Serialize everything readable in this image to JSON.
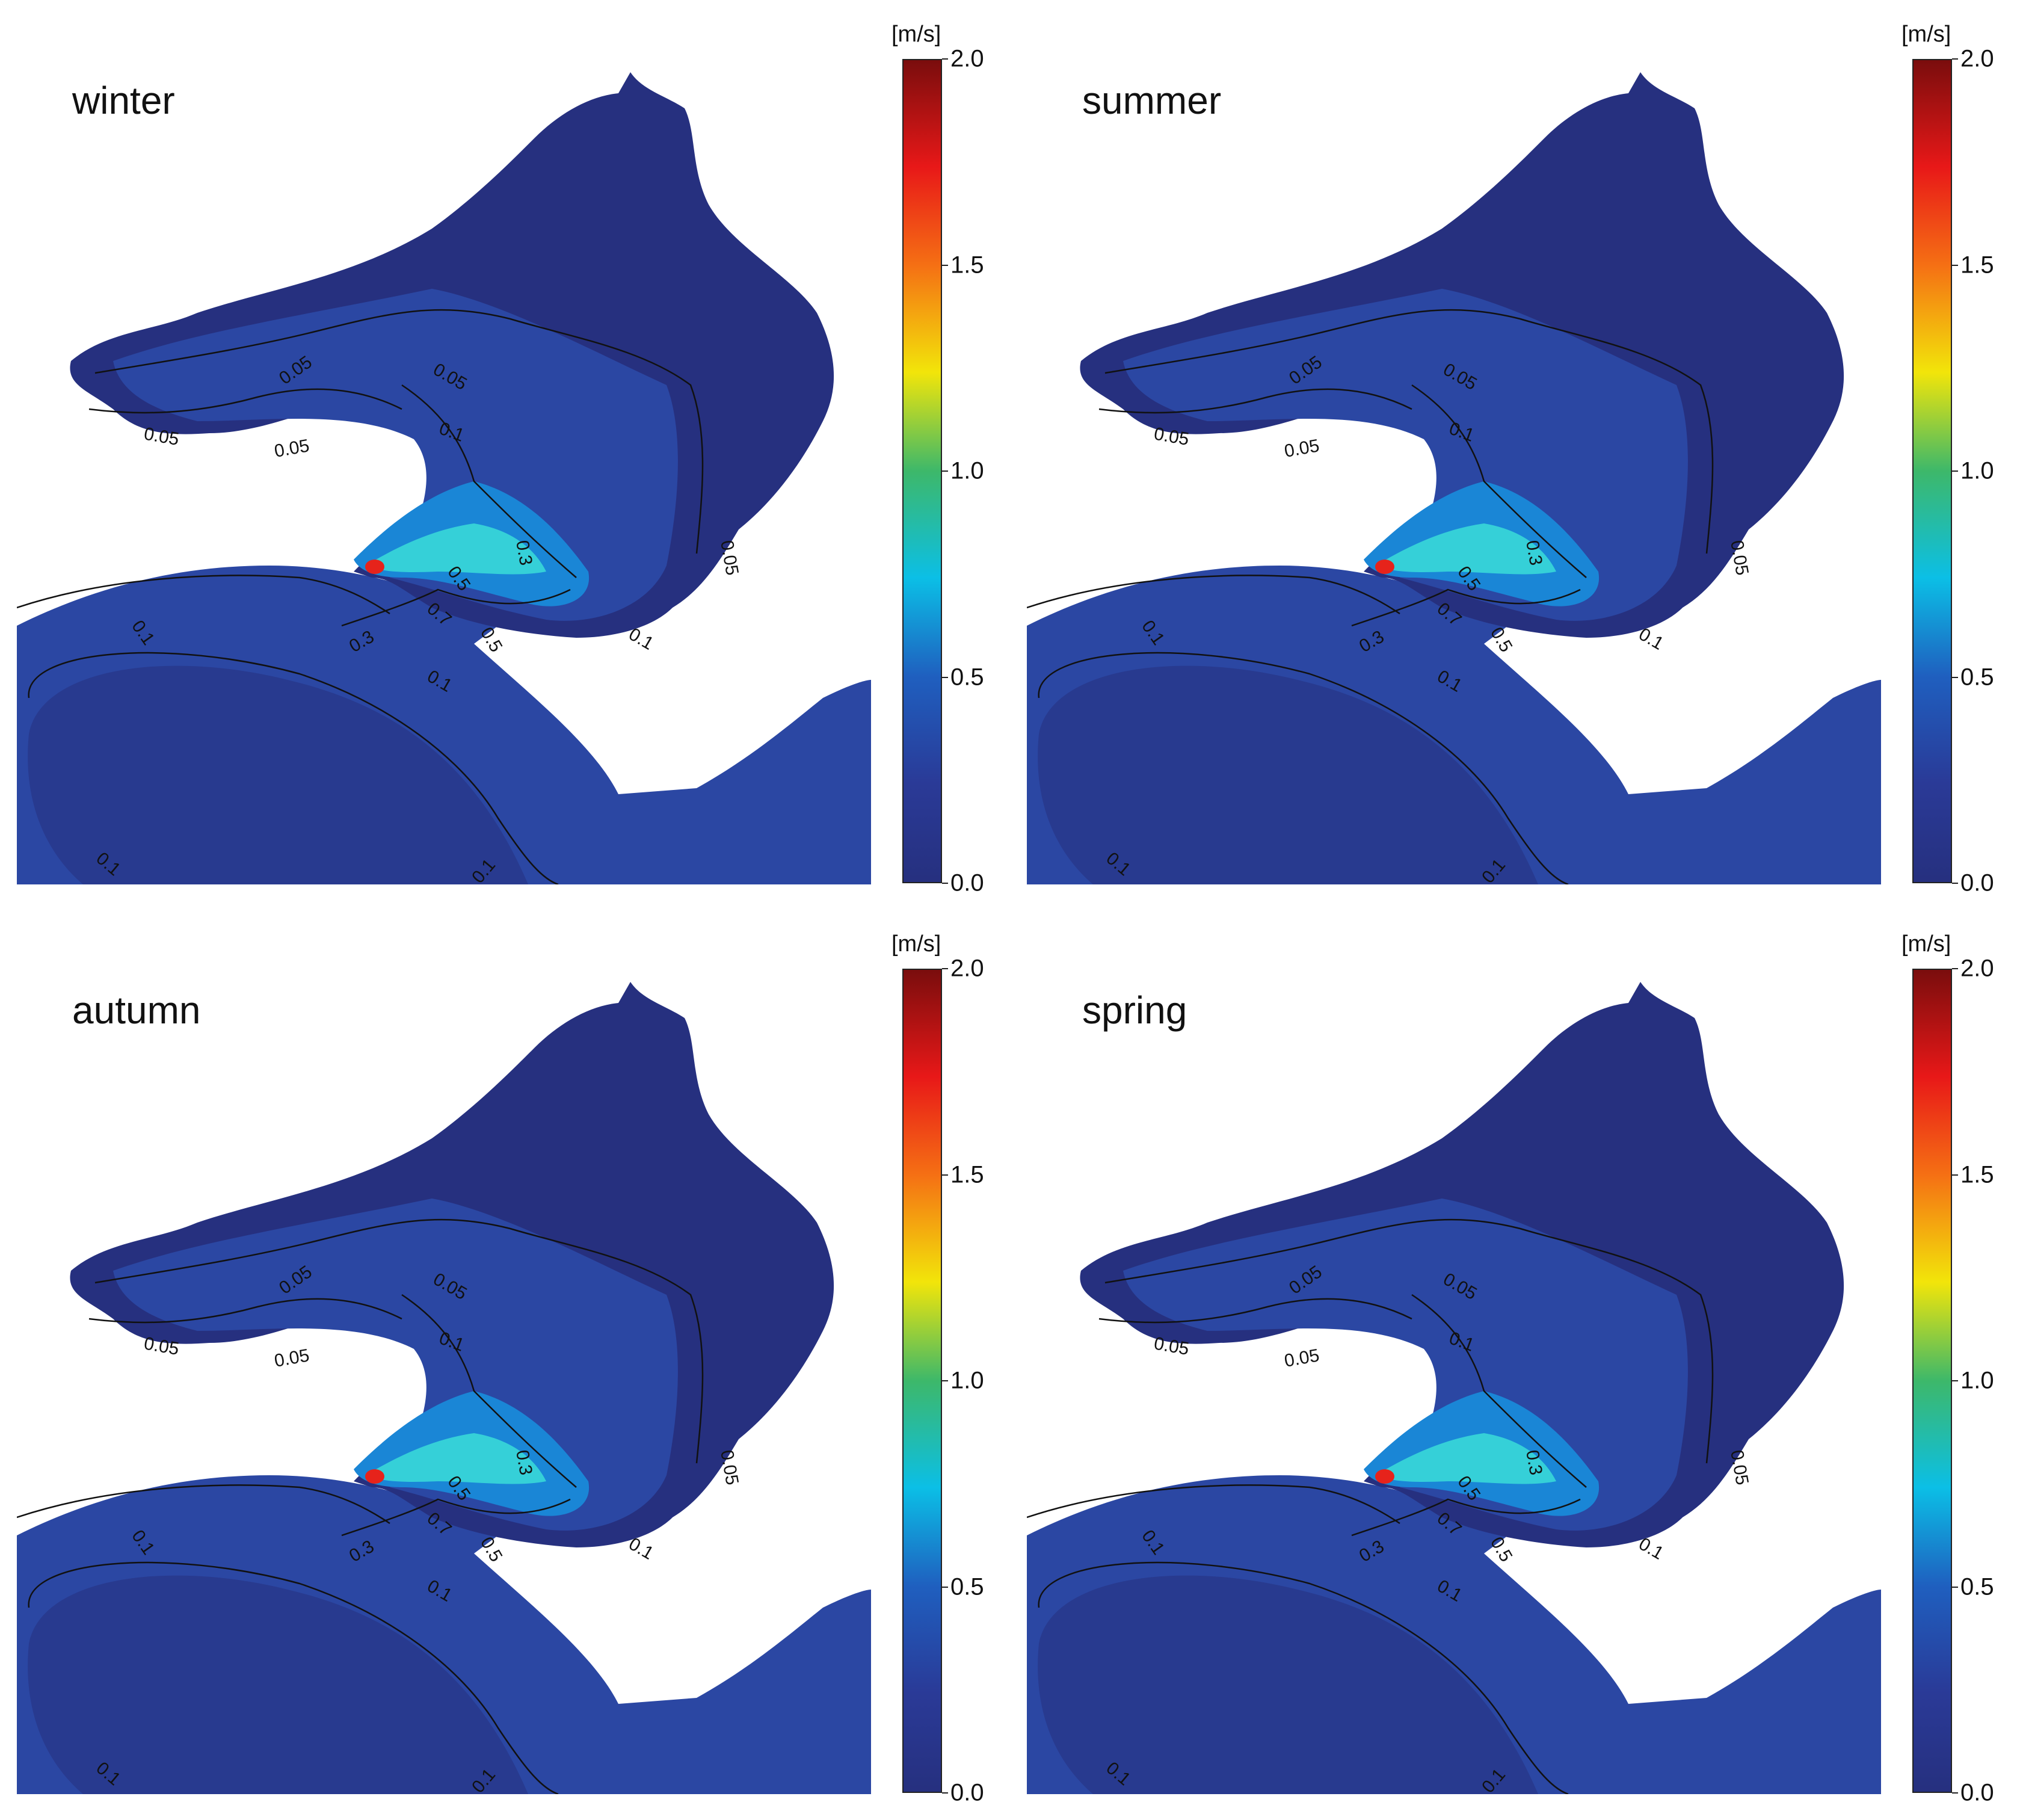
{
  "colorbar": {
    "unit": "[m/s]",
    "ticks": [
      "2.0",
      "1.5",
      "1.0",
      "0.5",
      "0.0"
    ],
    "tick_values": [
      2.0,
      1.5,
      1.0,
      0.5,
      0.0
    ],
    "range": [
      0.0,
      2.0
    ],
    "colors": [
      "#7a0d0d",
      "#e81818",
      "#f57014",
      "#f2e50a",
      "#3db86a",
      "#0bbfe6",
      "#1f5fbf",
      "#2a3a97",
      "#26307f"
    ]
  },
  "panels": [
    {
      "season": "winter",
      "contours": [
        "0.05",
        "0.05",
        "0.05",
        "0.05",
        "0.1",
        "0.05",
        "0.3",
        "0.5",
        "0.7",
        "0.5",
        "0.3",
        "0.1",
        "0.1",
        "0.1",
        "0.1",
        "0.1"
      ]
    },
    {
      "season": "summer",
      "contours": [
        "0.05",
        "0.05",
        "0.05",
        "0.05",
        "0.1",
        "0.05",
        "0.3",
        "0.5",
        "0.7",
        "0.5",
        "0.3",
        "0.1",
        "0.1",
        "0.1",
        "0.1",
        "0.1"
      ]
    },
    {
      "season": "autumn",
      "contours": [
        "0.05",
        "0.05",
        "0.05",
        "0.05",
        "0.1",
        "0.05",
        "0.3",
        "0.5",
        "0.7",
        "0.5",
        "0.3",
        "0.1",
        "0.1",
        "0.1",
        "0.1",
        "0.1"
      ]
    },
    {
      "season": "spring",
      "contours": [
        "0.05",
        "0.05",
        "0.05",
        "0.05",
        "0.1",
        "0.05",
        "0.3",
        "0.5",
        "0.7",
        "0.5",
        "0.3",
        "0.1",
        "0.1",
        "0.1",
        "0.1",
        "0.1"
      ]
    }
  ],
  "map_colors": {
    "deep_low": "#26307f",
    "low": "#2b47a3",
    "mid": "#1a86d6",
    "high": "#35d0d8",
    "hot": "#e6231b"
  }
}
